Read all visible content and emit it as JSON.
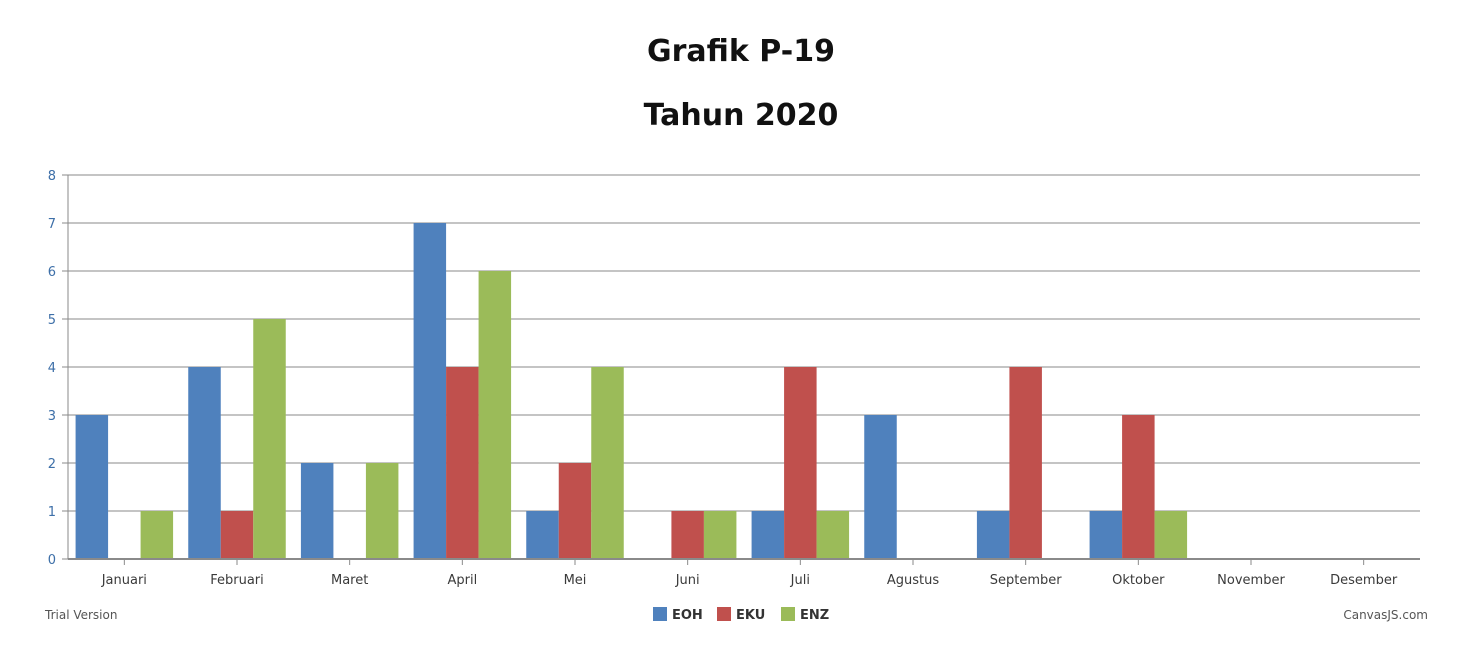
{
  "chart_data": {
    "type": "bar",
    "title": "Grafik P-19",
    "subtitle": "Tahun 2020",
    "categories": [
      "Januari",
      "Februari",
      "Maret",
      "April",
      "Mei",
      "Juni",
      "Juli",
      "Agustus",
      "September",
      "Oktober",
      "November",
      "Desember"
    ],
    "series": [
      {
        "name": "EOH",
        "color": "#4f81bd",
        "values": [
          3,
          4,
          2,
          7,
          1,
          0,
          1,
          3,
          1,
          1,
          0,
          0
        ]
      },
      {
        "name": "EKU",
        "color": "#c0504d",
        "values": [
          0,
          1,
          0,
          4,
          2,
          1,
          4,
          0,
          4,
          3,
          0,
          0
        ]
      },
      {
        "name": "ENZ",
        "color": "#9bbb59",
        "values": [
          1,
          5,
          2,
          6,
          4,
          1,
          1,
          0,
          0,
          1,
          0,
          0
        ]
      }
    ],
    "ylim": [
      0,
      8
    ],
    "yticks": [
      0,
      1,
      2,
      3,
      4,
      5,
      6,
      7,
      8
    ],
    "grid": true,
    "legend": "bottom-center"
  },
  "footer": {
    "trial": "Trial Version",
    "credit": "CanvasJS.com"
  }
}
